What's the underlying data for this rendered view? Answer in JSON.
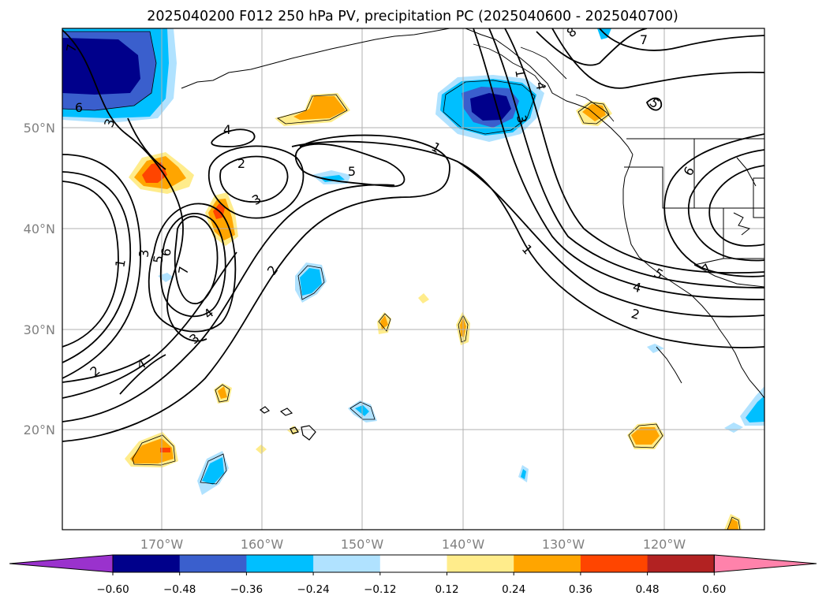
{
  "title": "2025040200 F012 250 hPa PV, precipitation PC (2025040600 - 2025040700)",
  "map": {
    "lat_labels": [
      "50°N",
      "40°N",
      "30°N",
      "20°N"
    ],
    "lon_labels": [
      "170°W",
      "160°W",
      "150°W",
      "140°W",
      "130°W",
      "120°W"
    ],
    "gridlines": true
  },
  "contour_labels": [
    "1",
    "2",
    "3",
    "4",
    "5",
    "6",
    "7",
    "5",
    "1",
    "1",
    "2",
    "4",
    "5",
    "6",
    "7",
    "8",
    "7",
    "2",
    "3",
    "4",
    "1",
    "3",
    "5",
    "6",
    "7",
    "2",
    "4",
    "3",
    "3",
    "4"
  ],
  "colorbar": {
    "ticks": [
      "−0.60",
      "−0.48",
      "−0.36",
      "−0.24",
      "−0.12",
      "0.12",
      "0.24",
      "0.36",
      "0.48",
      "0.60"
    ],
    "colors": [
      "#9a32cd",
      "#00008b",
      "#3a5fcd",
      "#00bfff",
      "#b0e2ff",
      "#ffffff",
      "#ffec8b",
      "#ffa500",
      "#ff4500",
      "#b22222",
      "#ff82ab"
    ],
    "extend": "both"
  }
}
